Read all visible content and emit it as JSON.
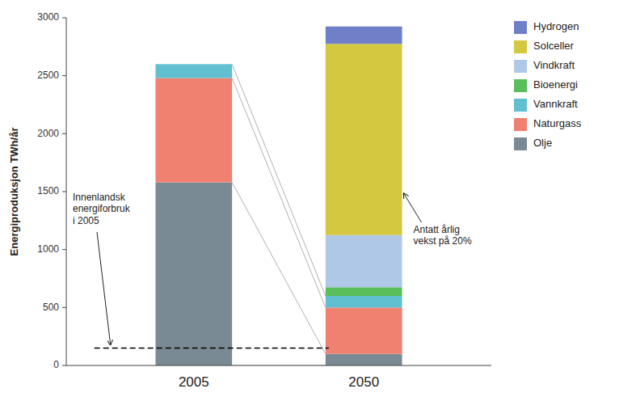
{
  "chart_data": {
    "type": "bar",
    "stacked": true,
    "categories": [
      "2005",
      "2050"
    ],
    "series": [
      {
        "name": "Olje",
        "color": "#7a8a94",
        "values": [
          1580,
          100
        ]
      },
      {
        "name": "Naturgass",
        "color": "#F08070",
        "values": [
          900,
          400
        ]
      },
      {
        "name": "Vannkraft",
        "color": "#60C0D0",
        "values": [
          120,
          100
        ]
      },
      {
        "name": "Bioenergi",
        "color": "#5ABF5A",
        "values": [
          0,
          75
        ]
      },
      {
        "name": "Vindkraft",
        "color": "#B0C8E8",
        "values": [
          0,
          450
        ]
      },
      {
        "name": "Solceller",
        "color": "#D4C840",
        "values": [
          0,
          1650
        ]
      },
      {
        "name": "Hydrogen",
        "color": "#7080C8",
        "values": [
          0,
          150
        ]
      }
    ],
    "y_label": "Energiproduksjon TWh/år",
    "ylim": [
      0,
      3000
    ],
    "yticks": [
      0,
      500,
      1000,
      1500,
      2000,
      2500,
      3000
    ],
    "grid": false,
    "legend": "right",
    "annotations": [
      {
        "text": "Innenlandsk\nenergiforbruk\ni 2005",
        "y": 150,
        "line_style": "dashed"
      },
      {
        "text": "Antatt årlig\nvekst på 20%",
        "x": "2050",
        "y": 1500
      }
    ]
  }
}
